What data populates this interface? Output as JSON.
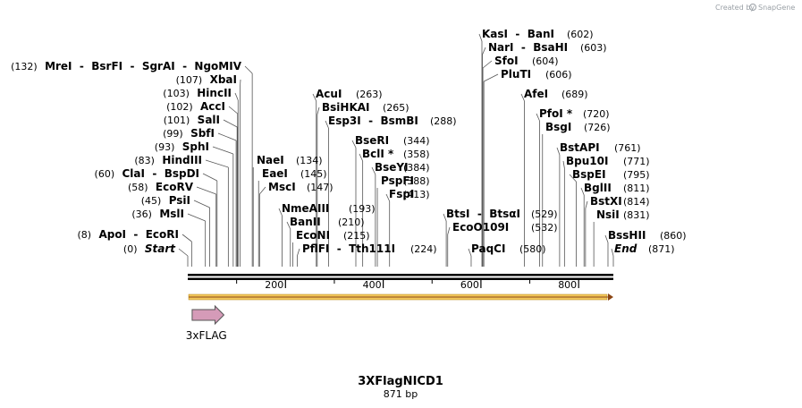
{
  "credit": {
    "prefix": "Created by",
    "brand": "SnapGene"
  },
  "map": {
    "name": "3XFlagNICD1",
    "length_label": "871 bp",
    "length": 871,
    "ticks": [
      200,
      400,
      600,
      800
    ],
    "feature": {
      "name": "3xFLAG",
      "start": 9,
      "end": 74,
      "color": "#d59bb8"
    },
    "sequence_bar_color": "#f2c75c"
  },
  "sites": [
    {
      "pos": 0,
      "pos_label": "(0)",
      "items": [
        "Start"
      ],
      "italic": true
    },
    {
      "pos": 8,
      "pos_label": "(8)",
      "items": [
        "ApoI",
        "EcoRI"
      ]
    },
    {
      "pos": 36,
      "pos_label": "(36)",
      "items": [
        "MslI"
      ]
    },
    {
      "pos": 45,
      "pos_label": "(45)",
      "items": [
        "PsiI"
      ]
    },
    {
      "pos": 58,
      "pos_label": "(58)",
      "items": [
        "EcoRV"
      ]
    },
    {
      "pos": 60,
      "pos_label": "(60)",
      "items": [
        "ClaI",
        "BspDI"
      ]
    },
    {
      "pos": 83,
      "pos_label": "(83)",
      "items": [
        "HindIII"
      ]
    },
    {
      "pos": 93,
      "pos_label": "(93)",
      "items": [
        "SphI"
      ]
    },
    {
      "pos": 99,
      "pos_label": "(99)",
      "items": [
        "SbfI"
      ]
    },
    {
      "pos": 101,
      "pos_label": "(101)",
      "items": [
        "SalI"
      ]
    },
    {
      "pos": 102,
      "pos_label": "(102)",
      "items": [
        "AccI"
      ]
    },
    {
      "pos": 103,
      "pos_label": "(103)",
      "items": [
        "HincII"
      ]
    },
    {
      "pos": 107,
      "pos_label": "(107)",
      "items": [
        "XbaI"
      ]
    },
    {
      "pos": 132,
      "pos_label": "(132)",
      "items": [
        "MreI",
        "BsrFI",
        "SgrAI",
        "NgoMIV"
      ]
    },
    {
      "pos": 134,
      "pos_label": "(134)",
      "items": [
        "NaeI"
      ]
    },
    {
      "pos": 145,
      "pos_label": "(145)",
      "items": [
        "EaeI"
      ]
    },
    {
      "pos": 147,
      "pos_label": "(147)",
      "items": [
        "MscI"
      ]
    },
    {
      "pos": 193,
      "pos_label": "(193)",
      "items": [
        "NmeAIII"
      ]
    },
    {
      "pos": 210,
      "pos_label": "(210)",
      "items": [
        "BanII"
      ]
    },
    {
      "pos": 215,
      "pos_label": "(215)",
      "items": [
        "EcoNI"
      ]
    },
    {
      "pos": 224,
      "pos_label": "(224)",
      "items": [
        "PflFI",
        "Tth111I"
      ]
    },
    {
      "pos": 263,
      "pos_label": "(263)",
      "items": [
        "AcuI"
      ]
    },
    {
      "pos": 265,
      "pos_label": "(265)",
      "items": [
        "BsiHKAI"
      ]
    },
    {
      "pos": 288,
      "pos_label": "(288)",
      "items": [
        "Esp3I",
        "BsmBI"
      ]
    },
    {
      "pos": 344,
      "pos_label": "(344)",
      "items": [
        "BseRI"
      ]
    },
    {
      "pos": 358,
      "pos_label": "(358)",
      "items": [
        "BclI *"
      ]
    },
    {
      "pos": 384,
      "pos_label": "(384)",
      "items": [
        "BseYI"
      ]
    },
    {
      "pos": 388,
      "pos_label": "(388)",
      "items": [
        "PspFI"
      ]
    },
    {
      "pos": 413,
      "pos_label": "(413)",
      "items": [
        "FspI"
      ]
    },
    {
      "pos": 529,
      "pos_label": "(529)",
      "items": [
        "BtsI",
        "BtsαI"
      ]
    },
    {
      "pos": 532,
      "pos_label": "(532)",
      "items": [
        "EcoO109I"
      ]
    },
    {
      "pos": 580,
      "pos_label": "(580)",
      "items": [
        "PaqCI"
      ]
    },
    {
      "pos": 602,
      "pos_label": "(602)",
      "items": [
        "KasI",
        "BanI"
      ]
    },
    {
      "pos": 603,
      "pos_label": "(603)",
      "items": [
        "NarI",
        "BsaHI"
      ]
    },
    {
      "pos": 604,
      "pos_label": "(604)",
      "items": [
        "SfoI"
      ]
    },
    {
      "pos": 606,
      "pos_label": "(606)",
      "items": [
        "PluTI"
      ]
    },
    {
      "pos": 689,
      "pos_label": "(689)",
      "items": [
        "AfeI"
      ]
    },
    {
      "pos": 720,
      "pos_label": "(720)",
      "items": [
        "PfoI *"
      ]
    },
    {
      "pos": 726,
      "pos_label": "(726)",
      "items": [
        "BsgI"
      ]
    },
    {
      "pos": 761,
      "pos_label": "(761)",
      "items": [
        "BstAPI"
      ]
    },
    {
      "pos": 771,
      "pos_label": "(771)",
      "items": [
        "Bpu10I"
      ]
    },
    {
      "pos": 795,
      "pos_label": "(795)",
      "items": [
        "BspEI"
      ]
    },
    {
      "pos": 811,
      "pos_label": "(811)",
      "items": [
        "BglII"
      ]
    },
    {
      "pos": 814,
      "pos_label": "(814)",
      "items": [
        "BstXI"
      ]
    },
    {
      "pos": 831,
      "pos_label": "(831)",
      "items": [
        "NsiI"
      ]
    },
    {
      "pos": 860,
      "pos_label": "(860)",
      "items": [
        "BssHII"
      ]
    },
    {
      "pos": 871,
      "pos_label": "(871)",
      "items": [
        "End"
      ],
      "italic": true
    }
  ]
}
